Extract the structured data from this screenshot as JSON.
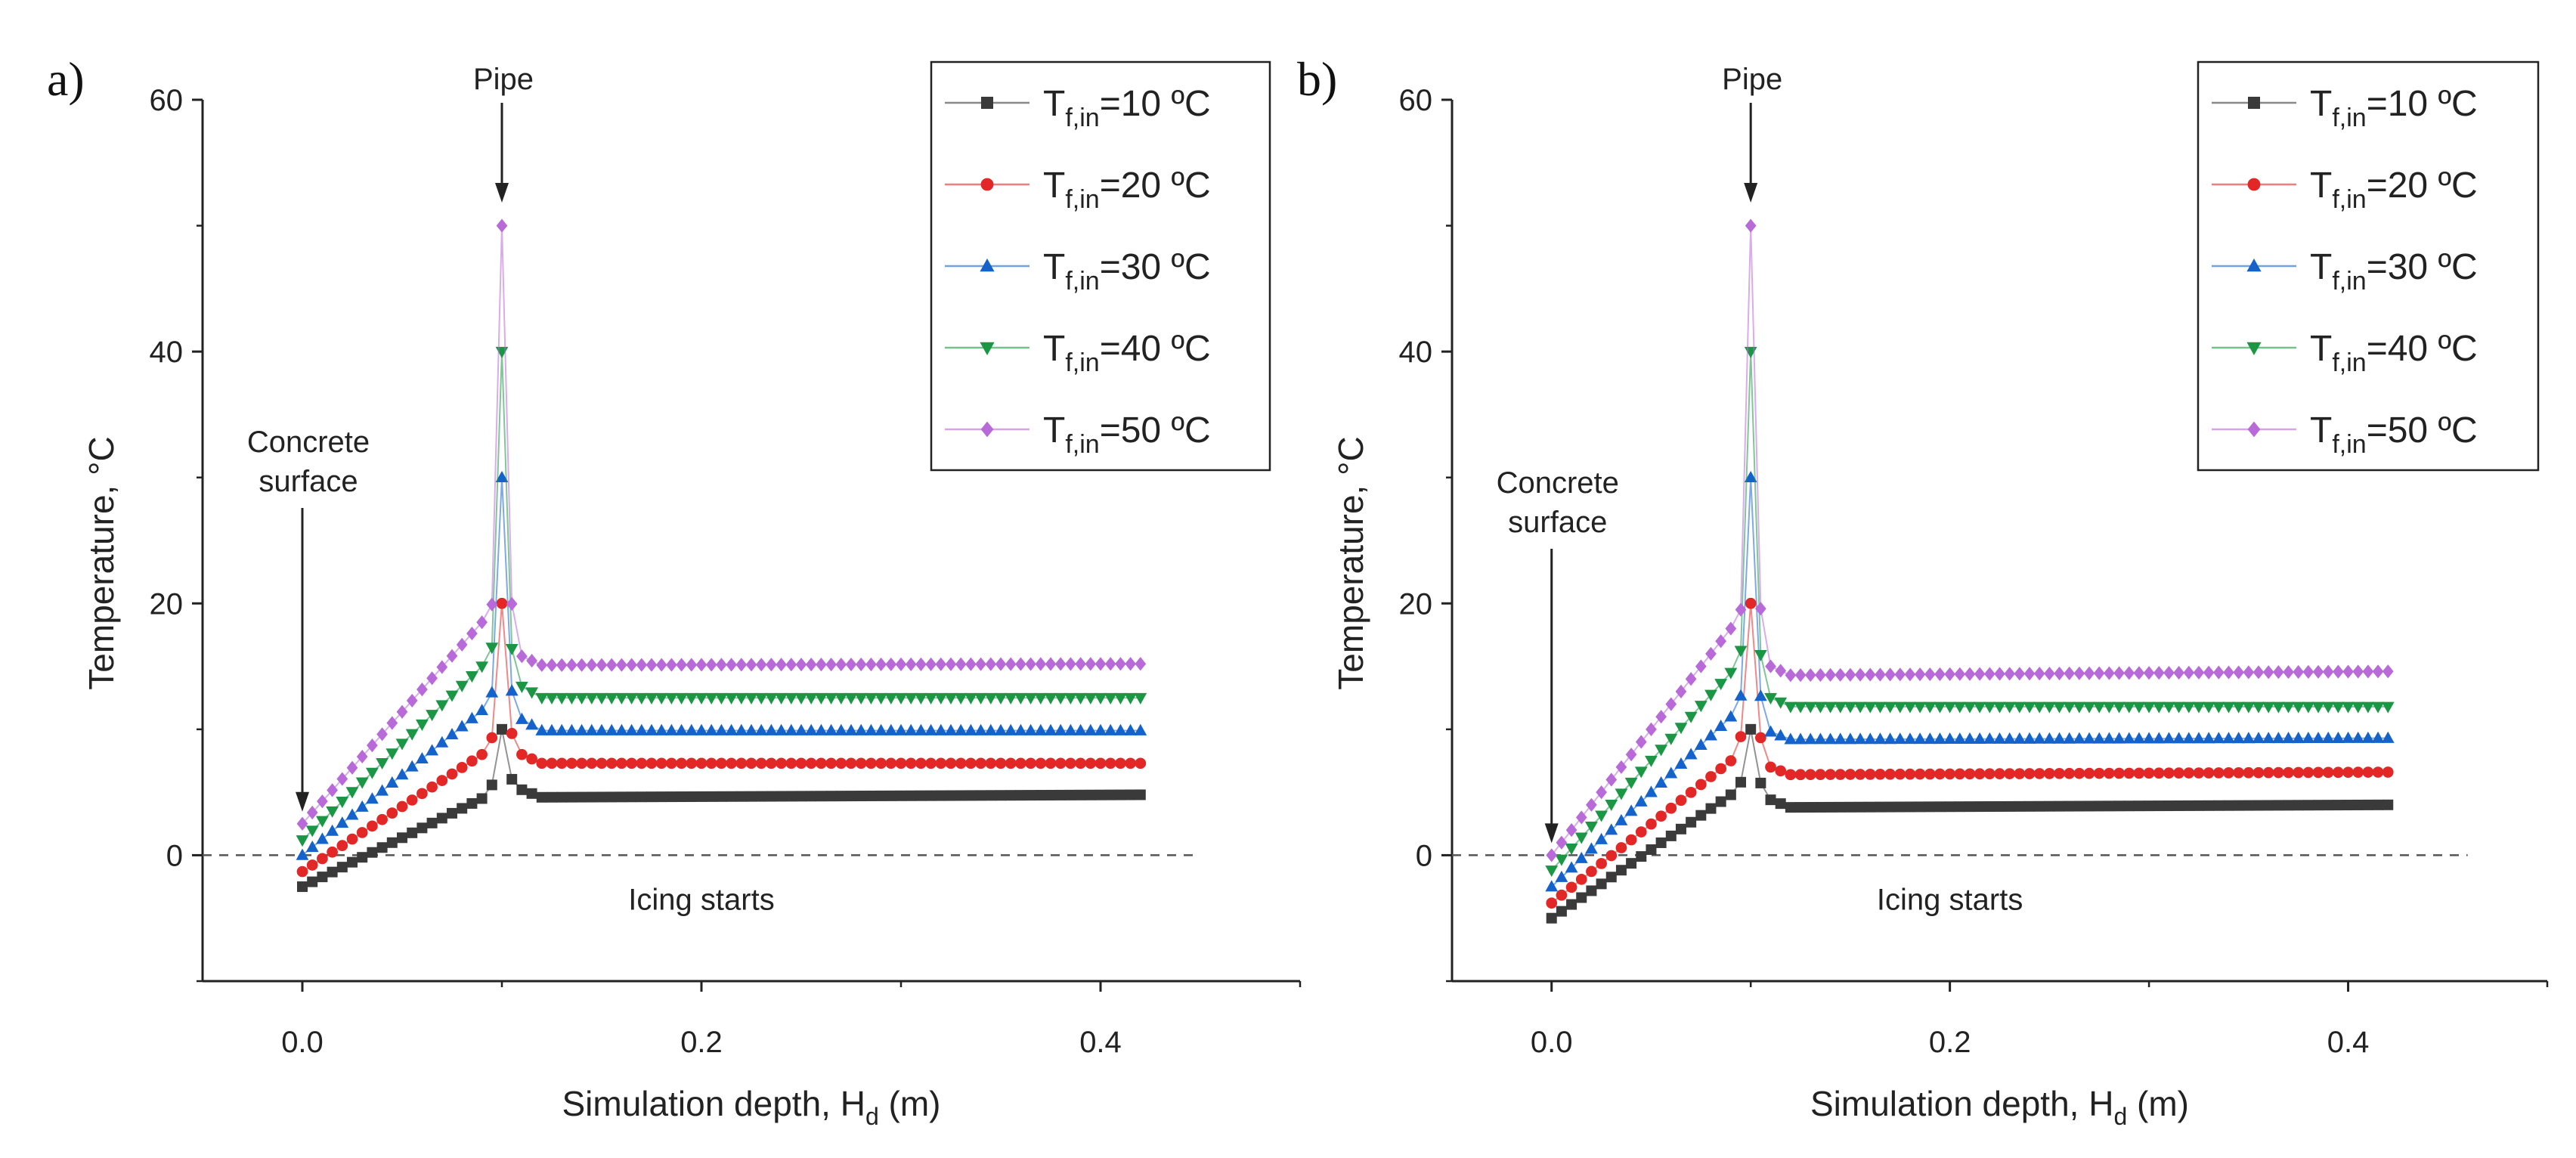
{
  "panels": [
    {
      "label": "a)",
      "annotations": {
        "pipe": "Pipe",
        "surface_line1": "Concrete",
        "surface_line2": "surface",
        "icing": "Icing starts"
      },
      "chart_data": {
        "type": "line",
        "title": "",
        "xlabel": "Simulation depth, H",
        "xlabel_sub": "d",
        "xlabel_suffix": " (m)",
        "ylabel": "Temperature, °C",
        "xlim": [
          -0.05,
          0.5
        ],
        "ylim": [
          -10,
          60
        ],
        "xticks": [
          0.0,
          0.2,
          0.4
        ],
        "xtick_labels": [
          "0.0",
          "0.2",
          "0.4"
        ],
        "yticks": [
          0,
          20,
          40,
          60
        ],
        "ytick_labels": [
          "0",
          "20",
          "40",
          "60"
        ],
        "grid": false,
        "legend_position": "top-right",
        "reference_line": {
          "y": 0,
          "style": "dashed",
          "x_range": [
            -0.05,
            0.45
          ]
        },
        "profile_knots": [
          0,
          0.09,
          0.096,
          0.1,
          0.104,
          0.11,
          0.12,
          0.42
        ],
        "x_step": 0.005,
        "series": [
          {
            "name": "T",
            "name_sub": "f,in",
            "name_value": "=10 ºC",
            "color": "#3a3a3a",
            "marker": "square",
            "knot_values": [
              -2.5,
              4.5,
              5.8,
              10,
              6.2,
              5.2,
              4.6,
              4.8
            ]
          },
          {
            "name": "T",
            "name_sub": "f,in",
            "name_value": "=20 ºC",
            "color": "#e32727",
            "marker": "circle",
            "knot_values": [
              -1.3,
              8.0,
              9.6,
              20,
              10.0,
              8.0,
              7.3,
              7.3
            ]
          },
          {
            "name": "T",
            "name_sub": "f,in",
            "name_value": "=30 ºC",
            "color": "#1463cc",
            "marker": "triangle-up",
            "knot_values": [
              0.0,
              11.5,
              13.2,
              30,
              13.5,
              10.8,
              9.9,
              9.9
            ]
          },
          {
            "name": "T",
            "name_sub": "f,in",
            "name_value": "=40 ºC",
            "color": "#1a9645",
            "marker": "triangle-down",
            "knot_values": [
              1.2,
              15.0,
              16.8,
              40,
              17.0,
              13.4,
              12.5,
              12.5
            ]
          },
          {
            "name": "T",
            "name_sub": "f,in",
            "name_value": "=50 ºC",
            "color": "#b86ad9",
            "marker": "diamond",
            "knot_values": [
              2.5,
              18.5,
              20.2,
              50,
              20.8,
              15.8,
              15.1,
              15.2
            ]
          }
        ]
      }
    },
    {
      "label": "b)",
      "annotations": {
        "pipe": "Pipe",
        "surface_line1": "Concrete",
        "surface_line2": "surface",
        "icing": "Icing starts"
      },
      "chart_data": {
        "type": "line",
        "title": "",
        "xlabel": "Simulation depth, H",
        "xlabel_sub": "d",
        "xlabel_suffix": " (m)",
        "ylabel": "Temperature, °C",
        "xlim": [
          -0.05,
          0.5
        ],
        "ylim": [
          -10,
          60
        ],
        "xticks": [
          0.0,
          0.2,
          0.4
        ],
        "xtick_labels": [
          "0.0",
          "0.2",
          "0.4"
        ],
        "yticks": [
          0,
          20,
          40,
          60
        ],
        "ytick_labels": [
          "0",
          "20",
          "40",
          "60"
        ],
        "grid": false,
        "legend_position": "top-right",
        "reference_line": {
          "y": 0,
          "style": "dashed",
          "x_range": [
            -0.05,
            0.46
          ]
        },
        "profile_knots": [
          0,
          0.09,
          0.096,
          0.1,
          0.104,
          0.11,
          0.12,
          0.42
        ],
        "x_step": 0.005,
        "series": [
          {
            "name": "T",
            "name_sub": "f,in",
            "name_value": "=10 ºC",
            "color": "#3a3a3a",
            "marker": "square",
            "knot_values": [
              -5.0,
              4.8,
              6.0,
              10,
              6.0,
              4.4,
              3.8,
              4.0
            ]
          },
          {
            "name": "T",
            "name_sub": "f,in",
            "name_value": "=20 ºC",
            "color": "#e32727",
            "marker": "circle",
            "knot_values": [
              -3.8,
              7.5,
              9.8,
              20,
              9.8,
              7.0,
              6.4,
              6.6
            ]
          },
          {
            "name": "T",
            "name_sub": "f,in",
            "name_value": "=30 ºC",
            "color": "#1463cc",
            "marker": "triangle-up",
            "knot_values": [
              -2.5,
              11.0,
              13.0,
              30,
              13.2,
              9.8,
              9.2,
              9.3
            ]
          },
          {
            "name": "T",
            "name_sub": "f,in",
            "name_value": "=40 ºC",
            "color": "#1a9645",
            "marker": "triangle-down",
            "knot_values": [
              -1.2,
              14.5,
              16.6,
              40,
              16.6,
              12.5,
              11.8,
              11.8
            ]
          },
          {
            "name": "T",
            "name_sub": "f,in",
            "name_value": "=50 ºC",
            "color": "#b86ad9",
            "marker": "diamond",
            "knot_values": [
              0.0,
              18.0,
              19.8,
              50,
              20.5,
              15.0,
              14.3,
              14.6
            ]
          }
        ]
      }
    }
  ]
}
